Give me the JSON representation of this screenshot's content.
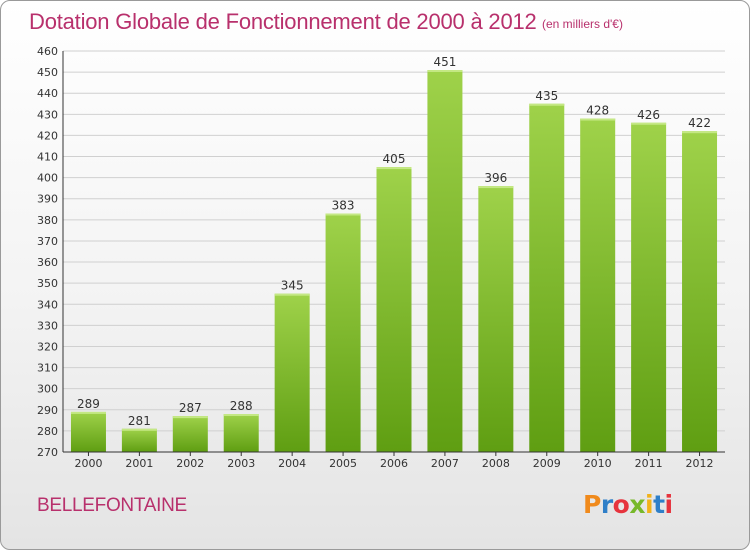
{
  "header": {
    "title": "Dotation Globale de Fonctionnement de 2000 à 2012",
    "unit_note": "(en milliers d'€)"
  },
  "footer": {
    "commune": "BELLEFONTAINE",
    "logo_text": "Proxiti"
  },
  "colors": {
    "title": "#b8306c",
    "bar_top": "#9fd24a",
    "bar_bottom": "#5f9e12",
    "grid": "#d0d0d0",
    "axis": "#333333",
    "logo_letters": [
      "#f08a1c",
      "#2f7fc8",
      "#e6333d",
      "#77b82a",
      "#f2b21b",
      "#2f7fc8",
      "#e6333d"
    ]
  },
  "chart_data": {
    "type": "bar",
    "title": "Dotation Globale de Fonctionnement de 2000 à 2012",
    "subtitle": "(en milliers d'€)",
    "categories": [
      "2000",
      "2001",
      "2002",
      "2003",
      "2004",
      "2005",
      "2006",
      "2007",
      "2008",
      "2009",
      "2010",
      "2011",
      "2012"
    ],
    "values": [
      289,
      281,
      287,
      288,
      345,
      383,
      405,
      451,
      396,
      435,
      428,
      426,
      422
    ],
    "ylim": [
      270,
      460
    ],
    "ytick_step": 10,
    "grid": true,
    "data_labels": true
  }
}
